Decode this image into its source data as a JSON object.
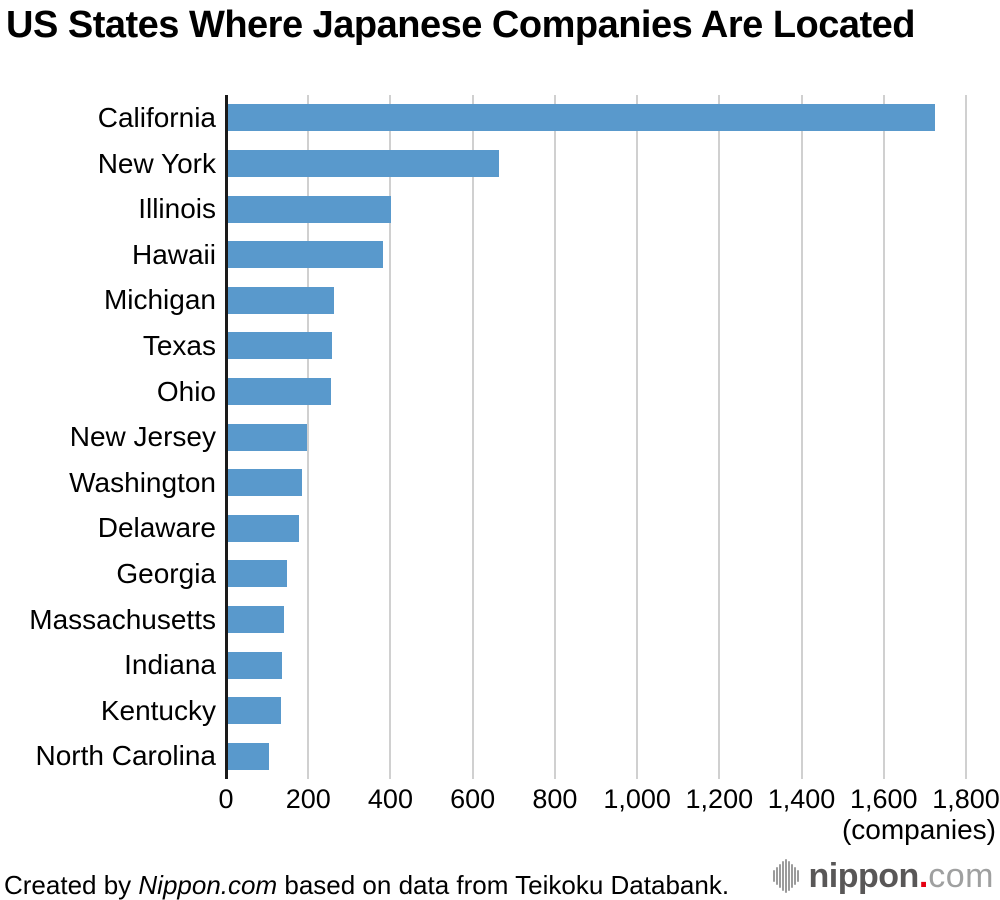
{
  "title": "US States Where Japanese Companies Are Located",
  "chart_data": {
    "type": "bar",
    "orientation": "horizontal",
    "title": "US States Where Japanese Companies Are Located",
    "categories": [
      "California",
      "New York",
      "Illinois",
      "Hawaii",
      "Michigan",
      "Texas",
      "Ohio",
      "New Jersey",
      "Washington",
      "Delaware",
      "Georgia",
      "Massachusetts",
      "Indiana",
      "Kentucky",
      "North Carolina"
    ],
    "values": [
      1720,
      658,
      396,
      377,
      258,
      254,
      251,
      192,
      181,
      172,
      143,
      135,
      132,
      129,
      99
    ],
    "xlabel": "(companies)",
    "ylabel": "",
    "xlim": [
      0,
      1800
    ],
    "tick_values": [
      0,
      200,
      400,
      600,
      800,
      1000,
      1200,
      1400,
      1600,
      1800
    ],
    "tick_labels": [
      "0",
      "200",
      "400",
      "600",
      "800",
      "1,000",
      "1,200",
      "1,400",
      "1,600",
      "1,800"
    ],
    "grid": true,
    "legend": false,
    "bar_color": "#5999cc",
    "gridline_color": "#d0d0d0",
    "axis_color": "#1a1a1a"
  },
  "footer": {
    "credit_prefix": "Created by ",
    "credit_source": "Nippon.com",
    "credit_suffix": " based on data from Teikoku Databank."
  },
  "logo": {
    "name_bold": "nippon",
    "dot": ".",
    "name_light": "com",
    "bold_color": "#595757",
    "dot_color": "#e60012",
    "light_color": "#9fa0a0",
    "icon_color": "#9b9b9b",
    "icon_bar_heights": [
      12,
      18,
      24,
      30,
      34,
      30,
      24,
      18,
      12
    ]
  }
}
